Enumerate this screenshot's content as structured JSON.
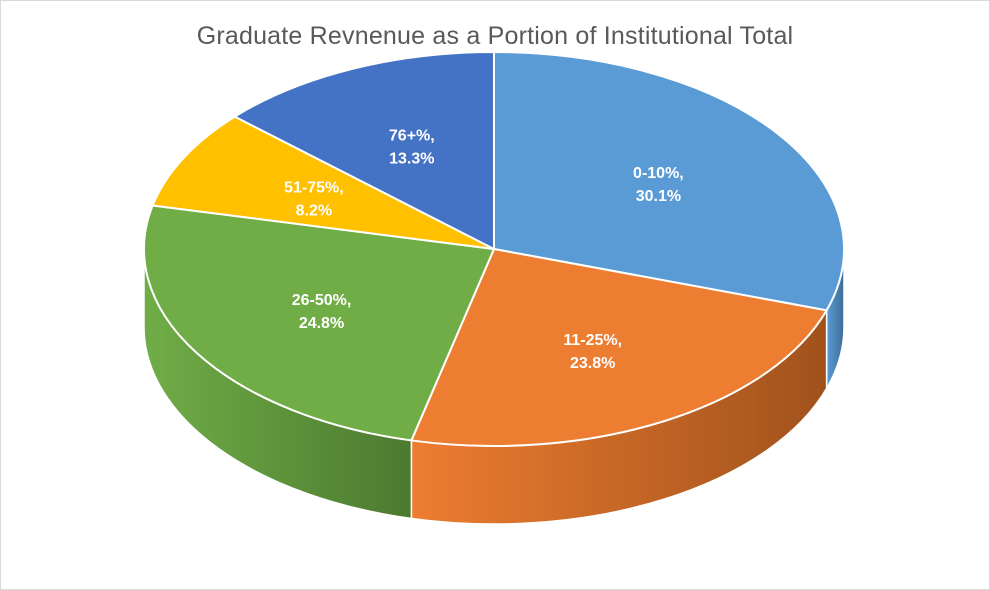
{
  "chart_data": {
    "type": "pie",
    "title": "Graduate Revnenue as a Portion of Institutional Total",
    "style": "3d",
    "slices": [
      {
        "name": "0-10%",
        "value": 30.1,
        "color": "#5b9bd5",
        "side_color": "#3d6d98",
        "label_line1": "0-10%,",
        "label_line2": "30.1%"
      },
      {
        "name": "11-25%",
        "value": 23.8,
        "color": "#ed7d31",
        "side_color": "#a0521c",
        "label_line1": "11-25%,",
        "label_line2": "23.8%"
      },
      {
        "name": "26-50%",
        "value": 24.8,
        "color": "#70ad47",
        "side_color": "#4c7a30",
        "label_line1": "26-50%,",
        "label_line2": "24.8%"
      },
      {
        "name": "51-75%",
        "value": 8.2,
        "color": "#ffc000",
        "side_color": "#b38600",
        "label_line1": "51-75%,",
        "label_line2": "8.2%"
      },
      {
        "name": "76+%",
        "value": 13.3,
        "color": "#4472c4",
        "side_color": "#2f5089",
        "label_line1": "76+%,",
        "label_line2": "13.3%"
      }
    ]
  }
}
